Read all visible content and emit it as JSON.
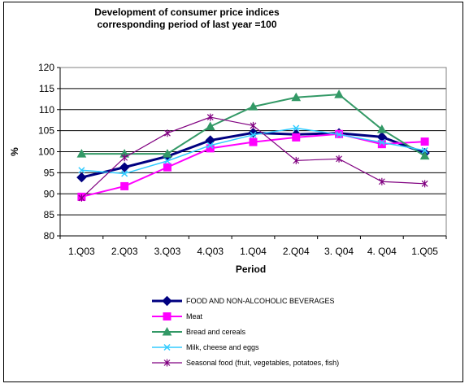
{
  "chart_data": {
    "type": "line",
    "title_lines": [
      "Development of consumer price indices",
      "corresponding period of last year =100"
    ],
    "xlabel": "Period",
    "ylabel": "%",
    "ylim": [
      80,
      120
    ],
    "yticks": [
      80,
      85,
      90,
      95,
      100,
      105,
      110,
      115,
      120
    ],
    "grid": true,
    "legend_position": "bottom",
    "categories": [
      "1.Q03",
      "2.Q03",
      "3.Q03",
      "4.Q03",
      "1.Q04",
      "2.Q04",
      "3. Q04",
      "4. Q04",
      "1.Q05"
    ],
    "series": [
      {
        "name": "FOOD AND NON-ALCOHOLIC BEVERAGES",
        "color": "#000080",
        "marker": "diamond",
        "values": [
          93.9,
          96.3,
          98.9,
          102.7,
          104.5,
          104.1,
          104.4,
          103.5,
          99.7
        ]
      },
      {
        "name": "Meat",
        "color": "#ff00ff",
        "marker": "square",
        "values": [
          89.3,
          91.8,
          96.3,
          100.8,
          102.3,
          103.4,
          104.2,
          101.8,
          102.4
        ]
      },
      {
        "name": "Bread and cereals",
        "color": "#339966",
        "marker": "triangle",
        "values": [
          99.5,
          99.5,
          99.5,
          106.0,
          110.7,
          112.9,
          113.6,
          105.3,
          99.0
        ]
      },
      {
        "name": "Milk, cheese and eggs",
        "color": "#33ccff",
        "marker": "x",
        "values": [
          95.6,
          94.8,
          97.8,
          101.5,
          104.0,
          105.6,
          104.1,
          102.2,
          100.3
        ]
      },
      {
        "name": "Seasonal food (fruit, vegetables, potatoes, fish)",
        "color": "#800080",
        "marker": "star",
        "values": [
          89.0,
          98.6,
          104.4,
          108.2,
          106.2,
          97.9,
          98.3,
          92.9,
          92.4
        ]
      }
    ]
  }
}
